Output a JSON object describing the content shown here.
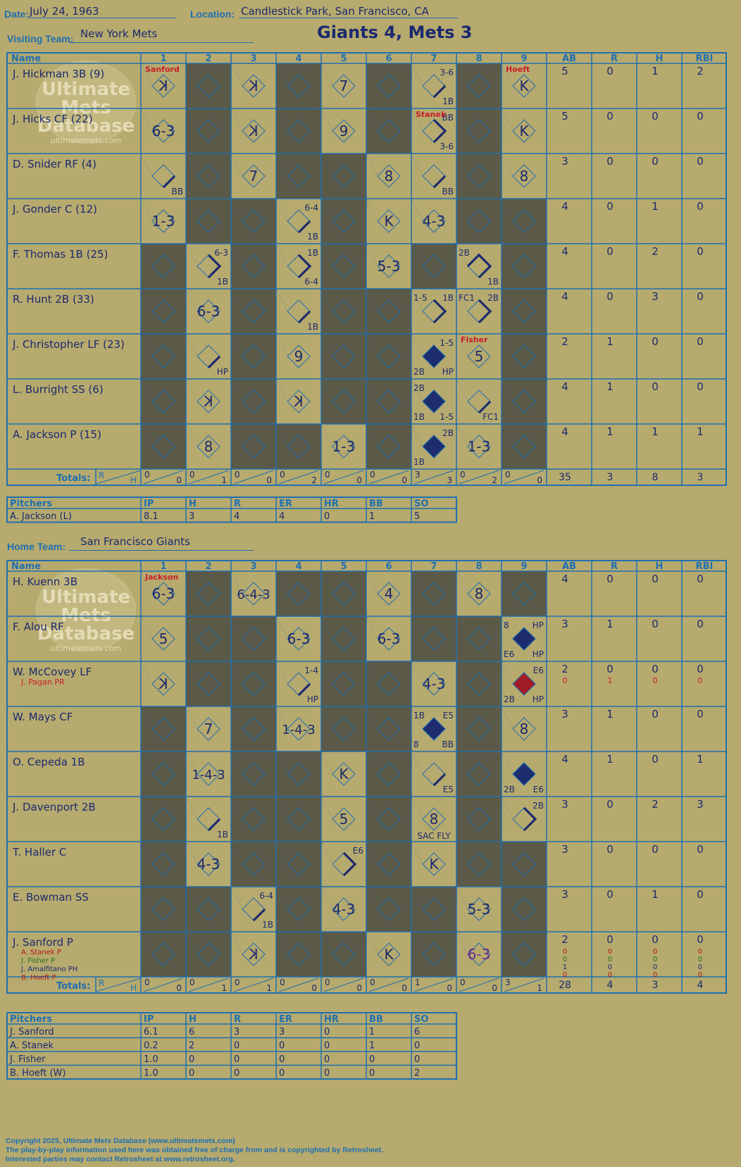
{
  "header": {
    "date_label": "Date:",
    "date": "July 24, 1963",
    "location_label": "Location:",
    "location": "Candlestick Park, San Francisco, CA",
    "visiting_label": "Visiting Team:",
    "visiting_team": "New York Mets",
    "home_label": "Home Team:",
    "home_team": "San Francisco Giants",
    "result": "Giants 4, Mets 3"
  },
  "columns": {
    "name": "Name",
    "innings": [
      "1",
      "2",
      "3",
      "4",
      "5",
      "6",
      "7",
      "8",
      "9"
    ],
    "stats": [
      "AB",
      "R",
      "H",
      "RBI"
    ],
    "totals": "Totals:",
    "r": "R",
    "h": "H"
  },
  "watermark": {
    "line1": "Ultimate",
    "line2": "Mets",
    "line3": "Database",
    "url": "ultimatemets.com"
  },
  "visitors": {
    "players": [
      {
        "name": "J. Hickman 3B (9)",
        "stats": [
          "5",
          "0",
          "1",
          "2"
        ]
      },
      {
        "name": "J. Hicks CF (22)",
        "stats": [
          "5",
          "0",
          "0",
          "0"
        ]
      },
      {
        "name": "D. Snider RF (4)",
        "stats": [
          "3",
          "0",
          "0",
          "0"
        ]
      },
      {
        "name": "J. Gonder C (12)",
        "stats": [
          "4",
          "0",
          "1",
          "0"
        ]
      },
      {
        "name": "F. Thomas 1B (25)",
        "stats": [
          "4",
          "0",
          "2",
          "0"
        ]
      },
      {
        "name": "R. Hunt 2B (33)",
        "stats": [
          "4",
          "0",
          "3",
          "0"
        ]
      },
      {
        "name": "J. Christopher LF (23)",
        "stats": [
          "2",
          "1",
          "0",
          "0"
        ]
      },
      {
        "name": "L. Burright SS (6)",
        "stats": [
          "4",
          "1",
          "0",
          "0"
        ]
      },
      {
        "name": "A. Jackson P (15)",
        "stats": [
          "4",
          "1",
          "1",
          "1"
        ]
      }
    ],
    "inning_totals": [
      [
        "0",
        "0"
      ],
      [
        "0",
        "1"
      ],
      [
        "0",
        "0"
      ],
      [
        "0",
        "2"
      ],
      [
        "0",
        "0"
      ],
      [
        "0",
        "0"
      ],
      [
        "3",
        "3"
      ],
      [
        "0",
        "2"
      ],
      [
        "0",
        "0"
      ]
    ],
    "totals": [
      "35",
      "3",
      "8",
      "3"
    ],
    "pitching_changes": [
      {
        "inning": 1,
        "row": 0,
        "name": "Sanford"
      },
      {
        "inning": 9,
        "row": 0,
        "name": "Hoeft"
      },
      {
        "inning": 7,
        "row": 1,
        "name": "Stanek"
      },
      {
        "inning": 8,
        "row": 6,
        "name": "Fisher"
      }
    ],
    "cells": [
      {
        "r": 0,
        "i": 1,
        "c": "K",
        "rev": true
      },
      {
        "r": 0,
        "i": 3,
        "c": "K",
        "rev": true
      },
      {
        "r": 0,
        "i": 5,
        "c": "7"
      },
      {
        "r": 0,
        "i": 7,
        "tr": "3-6",
        "br": "1B",
        "path": "1"
      },
      {
        "r": 0,
        "i": 9,
        "c": "K"
      },
      {
        "r": 1,
        "i": 1,
        "c": "6-3"
      },
      {
        "r": 1,
        "i": 3,
        "c": "K",
        "rev": true
      },
      {
        "r": 1,
        "i": 5,
        "c": "9"
      },
      {
        "r": 1,
        "i": 7,
        "tr": "BB",
        "br": "3-6",
        "path": "12"
      },
      {
        "r": 1,
        "i": 9,
        "c": "K"
      },
      {
        "r": 2,
        "i": 1,
        "br": "BB",
        "path": "1"
      },
      {
        "r": 2,
        "i": 3,
        "c": "7"
      },
      {
        "r": 2,
        "i": 6,
        "c": "8"
      },
      {
        "r": 2,
        "i": 7,
        "br": "BB",
        "path": "1"
      },
      {
        "r": 2,
        "i": 9,
        "c": "8"
      },
      {
        "r": 3,
        "i": 1,
        "c": "1-3"
      },
      {
        "r": 3,
        "i": 4,
        "tr": "6-4",
        "br": "1B",
        "path": "1"
      },
      {
        "r": 3,
        "i": 6,
        "c": "K"
      },
      {
        "r": 3,
        "i": 7,
        "c": "4-3"
      },
      {
        "r": 4,
        "i": 2,
        "tr": "6-3",
        "br": "1B",
        "path": "12"
      },
      {
        "r": 4,
        "i": 4,
        "tr": "1B",
        "br": "6-4",
        "path": "12"
      },
      {
        "r": 4,
        "i": 6,
        "c": "5-3"
      },
      {
        "r": 4,
        "i": 8,
        "tl": "2B",
        "br": "1B",
        "path": "23"
      },
      {
        "r": 5,
        "i": 2,
        "c": "6-3"
      },
      {
        "r": 5,
        "i": 4,
        "br": "1B",
        "path": "1"
      },
      {
        "r": 5,
        "i": 7,
        "tl": "1-5",
        "tr": "1B",
        "path": "12"
      },
      {
        "r": 5,
        "i": 8,
        "tl": "FC1",
        "tr": "2B",
        "path": "12"
      },
      {
        "r": 6,
        "i": 2,
        "br": "HP",
        "path": "1"
      },
      {
        "r": 6,
        "i": 4,
        "c": "9"
      },
      {
        "r": 6,
        "i": 7,
        "tr": "1-5",
        "bl": "2B",
        "br": "HP",
        "score": "navy"
      },
      {
        "r": 6,
        "i": 8,
        "c": "5"
      },
      {
        "r": 7,
        "i": 2,
        "c": "K",
        "rev": true
      },
      {
        "r": 7,
        "i": 4,
        "c": "K",
        "rev": true
      },
      {
        "r": 7,
        "i": 7,
        "tl": "2B",
        "bl": "1B",
        "br": "1-5",
        "score": "navy"
      },
      {
        "r": 7,
        "i": 8,
        "br": "FC1",
        "path": "1"
      },
      {
        "r": 8,
        "i": 2,
        "c": "8"
      },
      {
        "r": 8,
        "i": 5,
        "c": "1-3"
      },
      {
        "r": 8,
        "i": 7,
        "tr": "2B",
        "bl": "1B",
        "score": "navy"
      },
      {
        "r": 8,
        "i": 8,
        "c": "1-3"
      }
    ]
  },
  "home": {
    "players": [
      {
        "name": "H. Kuenn 3B",
        "stats": [
          "4",
          "0",
          "0",
          "0"
        ]
      },
      {
        "name": "F. Alou RF",
        "stats": [
          "3",
          "1",
          "0",
          "0"
        ]
      },
      {
        "name": "W. McCovey LF",
        "sub": "J. Pagan PR",
        "stats": [
          "2",
          "0",
          "0",
          "0"
        ],
        "sub_stats": [
          "0",
          "1",
          "0",
          "0"
        ]
      },
      {
        "name": "W. Mays CF",
        "stats": [
          "3",
          "1",
          "0",
          "0"
        ]
      },
      {
        "name": "O. Cepeda 1B",
        "stats": [
          "4",
          "1",
          "0",
          "1"
        ]
      },
      {
        "name": "J. Davenport 2B",
        "stats": [
          "3",
          "0",
          "2",
          "3"
        ]
      },
      {
        "name": "T. Haller C",
        "stats": [
          "3",
          "0",
          "0",
          "0"
        ]
      },
      {
        "name": "E. Bowman SS",
        "stats": [
          "3",
          "0",
          "1",
          "0"
        ]
      },
      {
        "name": "J. Sanford P",
        "stats": [
          "2",
          "0",
          "0",
          "0"
        ],
        "subs": [
          {
            "name": "A. Stanek P",
            "color": "#b01818"
          },
          {
            "name": "J. Fisher P",
            "color": "#287018"
          },
          {
            "name": "J. Amalfitano PH",
            "color": "#1b2a6e"
          },
          {
            "name": "B. Hoeft P",
            "color": "#b01818"
          }
        ],
        "sub_stats": [
          [
            "0",
            "0",
            "0",
            "0"
          ],
          [
            "0",
            "0",
            "0",
            "0"
          ],
          [
            "1",
            "0",
            "0",
            "0"
          ],
          [
            "0",
            "0",
            "0",
            "0"
          ]
        ]
      }
    ],
    "inning_totals": [
      [
        "0",
        "0"
      ],
      [
        "0",
        "1"
      ],
      [
        "0",
        "1"
      ],
      [
        "0",
        "0"
      ],
      [
        "0",
        "0"
      ],
      [
        "0",
        "0"
      ],
      [
        "1",
        "0"
      ],
      [
        "0",
        "0"
      ],
      [
        "3",
        "1"
      ]
    ],
    "totals": [
      "28",
      "4",
      "3",
      "4"
    ],
    "pitching_changes": [
      {
        "inning": 1,
        "row": 0,
        "name": "Jackson"
      }
    ],
    "cells": [
      {
        "r": 0,
        "i": 1,
        "c": "6-3"
      },
      {
        "r": 0,
        "i": 3,
        "c": "6-4-3"
      },
      {
        "r": 0,
        "i": 6,
        "c": "4"
      },
      {
        "r": 0,
        "i": 8,
        "c": "8"
      },
      {
        "r": 1,
        "i": 1,
        "c": "5"
      },
      {
        "r": 1,
        "i": 4,
        "c": "6-3"
      },
      {
        "r": 1,
        "i": 6,
        "c": "6-3"
      },
      {
        "r": 1,
        "i": 9,
        "tl": "8",
        "tr": "HP",
        "bl": "E6",
        "br": "HP",
        "score": "navy"
      },
      {
        "r": 2,
        "i": 1,
        "c": "K",
        "rev": true
      },
      {
        "r": 2,
        "i": 4,
        "tr": "1-4",
        "br": "HP",
        "path": "1"
      },
      {
        "r": 2,
        "i": 7,
        "c": "4-3"
      },
      {
        "r": 2,
        "i": 9,
        "tr": "E6",
        "bl": "2B",
        "br": "HP",
        "score": "red"
      },
      {
        "r": 3,
        "i": 2,
        "c": "7"
      },
      {
        "r": 3,
        "i": 4,
        "c": "1-4-3"
      },
      {
        "r": 3,
        "i": 7,
        "tl": "1B",
        "tr": "E5",
        "bl": "8",
        "br": "BB",
        "score": "navy"
      },
      {
        "r": 3,
        "i": 9,
        "c": "8"
      },
      {
        "r": 4,
        "i": 2,
        "c": "1-4-3"
      },
      {
        "r": 4,
        "i": 5,
        "c": "K"
      },
      {
        "r": 4,
        "i": 7,
        "br": "E5",
        "path": "1"
      },
      {
        "r": 4,
        "i": 9,
        "bl": "2B",
        "br": "E6",
        "score": "navy"
      },
      {
        "r": 5,
        "i": 2,
        "br": "1B",
        "path": "1"
      },
      {
        "r": 5,
        "i": 5,
        "c": "5"
      },
      {
        "r": 5,
        "i": 7,
        "c": "8",
        "note": "SAC FLY"
      },
      {
        "r": 5,
        "i": 9,
        "tr": "2B",
        "path": "12"
      },
      {
        "r": 6,
        "i": 2,
        "c": "4-3"
      },
      {
        "r": 6,
        "i": 5,
        "tr": "E6",
        "path": "12"
      },
      {
        "r": 6,
        "i": 7,
        "c": "K"
      },
      {
        "r": 7,
        "i": 3,
        "tr": "6-4",
        "br": "1B",
        "path": "1"
      },
      {
        "r": 7,
        "i": 5,
        "c": "4-3"
      },
      {
        "r": 7,
        "i": 8,
        "c": "5-3"
      },
      {
        "r": 8,
        "i": 3,
        "c": "K",
        "rev": true
      },
      {
        "r": 8,
        "i": 6,
        "c": "K"
      },
      {
        "r": 8,
        "i": 8,
        "c": "6-3",
        "color": "#6a2a8a"
      }
    ]
  },
  "pitching_headers": [
    "Pitchers",
    "IP",
    "H",
    "R",
    "ER",
    "HR",
    "BB",
    "SO"
  ],
  "visitor_pitchers": [
    [
      "A. Jackson (L)",
      "8.1",
      "3",
      "4",
      "4",
      "0",
      "1",
      "5"
    ]
  ],
  "home_pitchers": [
    [
      "J. Sanford",
      "6.1",
      "6",
      "3",
      "3",
      "0",
      "1",
      "6"
    ],
    [
      "A. Stanek",
      "0.2",
      "2",
      "0",
      "0",
      "0",
      "1",
      "0"
    ],
    [
      "J. Fisher",
      "1.0",
      "0",
      "0",
      "0",
      "0",
      "0",
      "0"
    ],
    [
      "B. Hoeft (W)",
      "1.0",
      "0",
      "0",
      "0",
      "0",
      "0",
      "2"
    ]
  ],
  "footer": {
    "line1": "Copyright 2025, Ultimate Mets Database (www.ultimatemets.com)",
    "line2": "The play-by-play information used here was obtained free of charge from and is copyrighted by Retrosheet.",
    "line3": "Interested parties may contact Retrosheet at www.retrosheet.org."
  },
  "colors": {
    "background": "#b7aa6e",
    "grid": "#1f6fb0",
    "ink": "#1b2a6e",
    "dark_cell": "#5b5947",
    "red_ink": "#c8202a",
    "score_navy": "#1c2c6e",
    "score_red": "#a11c24"
  }
}
